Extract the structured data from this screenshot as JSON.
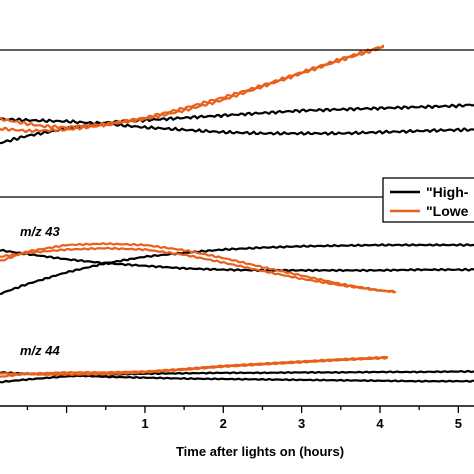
{
  "chart_data": {
    "type": "line",
    "xlabel": "Time after lights on (hours)",
    "xlim": [
      -0.85,
      5.2
    ],
    "x_ticks": [
      1,
      2,
      3,
      4,
      5
    ],
    "colors": {
      "high": "#000000",
      "low": "#e8601c"
    },
    "legend": {
      "position": "right, between top and middle panels",
      "entries": [
        {
          "label": "\"High-",
          "color": "#000000"
        },
        {
          "label": "\"Lowe",
          "color": "#e8601c"
        }
      ]
    },
    "panels": [
      {
        "label": "",
        "series": [
          {
            "color": "#000000",
            "points": [
              [
                -0.85,
                0.1
              ],
              [
                -0.5,
                0.16
              ],
              [
                0,
                0.22
              ],
              [
                0.5,
                0.27
              ],
              [
                1,
                0.29
              ],
              [
                1.5,
                0.31
              ],
              [
                2,
                0.33
              ],
              [
                2.5,
                0.35
              ],
              [
                3,
                0.37
              ],
              [
                3.5,
                0.38
              ],
              [
                4,
                0.39
              ],
              [
                4.5,
                0.4
              ],
              [
                5,
                0.41
              ],
              [
                5.2,
                0.42
              ]
            ]
          },
          {
            "color": "#000000",
            "points": [
              [
                -0.85,
                0.3
              ],
              [
                -0.5,
                0.29
              ],
              [
                0,
                0.28
              ],
              [
                0.5,
                0.26
              ],
              [
                1,
                0.23
              ],
              [
                1.5,
                0.21
              ],
              [
                2,
                0.19
              ],
              [
                2.5,
                0.18
              ],
              [
                3,
                0.18
              ],
              [
                3.5,
                0.18
              ],
              [
                4,
                0.19
              ],
              [
                4.5,
                0.2
              ],
              [
                5,
                0.21
              ],
              [
                5.2,
                0.21
              ]
            ]
          },
          {
            "color": "#e8601c",
            "points": [
              [
                -0.85,
                0.3
              ],
              [
                -0.5,
                0.26
              ],
              [
                -0.3,
                0.24
              ],
              [
                0,
                0.23
              ],
              [
                0.5,
                0.26
              ],
              [
                1,
                0.31
              ],
              [
                1.5,
                0.39
              ],
              [
                2,
                0.48
              ],
              [
                2.5,
                0.58
              ],
              [
                3,
                0.69
              ],
              [
                3.5,
                0.8
              ],
              [
                3.8,
                0.86
              ],
              [
                4.05,
                0.91
              ]
            ]
          },
          {
            "color": "#e8601c",
            "points": [
              [
                -0.85,
                0.22
              ],
              [
                -0.5,
                0.2
              ],
              [
                0,
                0.21
              ],
              [
                0.5,
                0.25
              ],
              [
                1,
                0.3
              ],
              [
                1.5,
                0.37
              ],
              [
                2,
                0.46
              ],
              [
                2.5,
                0.57
              ],
              [
                3,
                0.68
              ],
              [
                3.5,
                0.79
              ],
              [
                3.8,
                0.85
              ],
              [
                4.05,
                0.9
              ]
            ]
          }
        ]
      },
      {
        "label": "m/z 43",
        "series": [
          {
            "color": "#000000",
            "points": [
              [
                -0.85,
                0.05
              ],
              [
                -0.5,
                0.2
              ],
              [
                0,
                0.38
              ],
              [
                0.5,
                0.52
              ],
              [
                1,
                0.62
              ],
              [
                1.5,
                0.68
              ],
              [
                2,
                0.73
              ],
              [
                2.5,
                0.76
              ],
              [
                3,
                0.78
              ],
              [
                3.5,
                0.79
              ],
              [
                4,
                0.8
              ],
              [
                4.5,
                0.8
              ],
              [
                5,
                0.8
              ],
              [
                5.2,
                0.8
              ]
            ]
          },
          {
            "color": "#000000",
            "points": [
              [
                -0.85,
                0.72
              ],
              [
                -0.5,
                0.66
              ],
              [
                0,
                0.58
              ],
              [
                0.5,
                0.52
              ],
              [
                1,
                0.48
              ],
              [
                1.5,
                0.44
              ],
              [
                2,
                0.42
              ],
              [
                2.5,
                0.41
              ],
              [
                3,
                0.41
              ],
              [
                3.5,
                0.41
              ],
              [
                4,
                0.41
              ],
              [
                4.5,
                0.42
              ],
              [
                5,
                0.42
              ],
              [
                5.2,
                0.42
              ]
            ]
          },
          {
            "color": "#e8601c",
            "points": [
              [
                -0.85,
                0.55
              ],
              [
                -0.5,
                0.7
              ],
              [
                0,
                0.8
              ],
              [
                0.5,
                0.82
              ],
              [
                1,
                0.8
              ],
              [
                1.5,
                0.72
              ],
              [
                2,
                0.6
              ],
              [
                2.5,
                0.46
              ],
              [
                3,
                0.33
              ],
              [
                3.5,
                0.2
              ],
              [
                4,
                0.1
              ],
              [
                4.2,
                0.08
              ]
            ]
          },
          {
            "color": "#e8601c",
            "points": [
              [
                -0.85,
                0.62
              ],
              [
                -0.5,
                0.68
              ],
              [
                0,
                0.73
              ],
              [
                0.5,
                0.75
              ],
              [
                1,
                0.73
              ],
              [
                1.5,
                0.65
              ],
              [
                2,
                0.53
              ],
              [
                2.5,
                0.4
              ],
              [
                3,
                0.28
              ],
              [
                3.5,
                0.18
              ],
              [
                4,
                0.1
              ],
              [
                4.2,
                0.08
              ]
            ]
          }
        ]
      },
      {
        "label": "m/z 44",
        "series": [
          {
            "color": "#000000",
            "points": [
              [
                -0.85,
                0.18
              ],
              [
                -0.5,
                0.24
              ],
              [
                0,
                0.31
              ],
              [
                0.5,
                0.35
              ],
              [
                1,
                0.37
              ],
              [
                1.5,
                0.38
              ],
              [
                2,
                0.39
              ],
              [
                2.5,
                0.39
              ],
              [
                3,
                0.4
              ],
              [
                3.5,
                0.4
              ],
              [
                4,
                0.41
              ],
              [
                4.5,
                0.41
              ],
              [
                5,
                0.42
              ],
              [
                5.2,
                0.42
              ]
            ]
          },
          {
            "color": "#000000",
            "points": [
              [
                -0.85,
                0.4
              ],
              [
                -0.5,
                0.37
              ],
              [
                0,
                0.34
              ],
              [
                0.5,
                0.3
              ],
              [
                1,
                0.28
              ],
              [
                1.5,
                0.26
              ],
              [
                2,
                0.25
              ],
              [
                2.5,
                0.24
              ],
              [
                3,
                0.23
              ],
              [
                3.5,
                0.22
              ],
              [
                4,
                0.21
              ],
              [
                4.5,
                0.2
              ],
              [
                5,
                0.2
              ],
              [
                5.2,
                0.2
              ]
            ]
          },
          {
            "color": "#e8601c",
            "points": [
              [
                -0.85,
                0.3
              ],
              [
                -0.5,
                0.37
              ],
              [
                0,
                0.4
              ],
              [
                0.5,
                0.4
              ],
              [
                1,
                0.42
              ],
              [
                1.5,
                0.48
              ],
              [
                2,
                0.55
              ],
              [
                2.5,
                0.6
              ],
              [
                3,
                0.65
              ],
              [
                3.5,
                0.7
              ],
              [
                4,
                0.74
              ],
              [
                4.1,
                0.75
              ]
            ]
          },
          {
            "color": "#e8601c",
            "points": [
              [
                -0.85,
                0.38
              ],
              [
                -0.5,
                0.36
              ],
              [
                0,
                0.35
              ],
              [
                0.5,
                0.36
              ],
              [
                1,
                0.4
              ],
              [
                1.5,
                0.46
              ],
              [
                2,
                0.53
              ],
              [
                2.5,
                0.58
              ],
              [
                3,
                0.63
              ],
              [
                3.5,
                0.68
              ],
              [
                4,
                0.72
              ],
              [
                4.1,
                0.73
              ]
            ]
          }
        ]
      }
    ]
  }
}
